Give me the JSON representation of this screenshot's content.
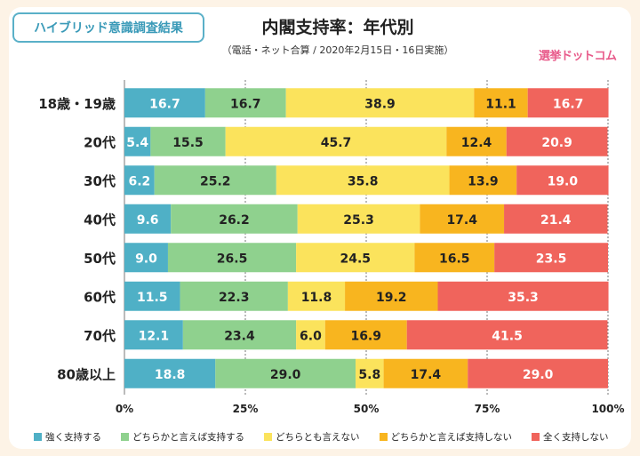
{
  "badge": "ハイブリッド意識調査結果",
  "title": "内閣支持率：年代別",
  "subtitle": "（電話・ネット合算 / 2020年2月15日・16日実施）",
  "logo": "選挙ドットコム",
  "chart_data": {
    "type": "bar",
    "orientation": "horizontal",
    "stacked": true,
    "title": "内閣支持率：年代別",
    "categories": [
      "18歳・19歳",
      "20代",
      "30代",
      "40代",
      "50代",
      "60代",
      "70代",
      "80歳以上"
    ],
    "series": [
      {
        "name": "強く支持する",
        "color": "#4fb0c6",
        "values": [
          16.7,
          5.4,
          6.2,
          9.6,
          9.0,
          11.5,
          12.1,
          18.8
        ]
      },
      {
        "name": "どちらかと言えば支持する",
        "color": "#8fd18e",
        "values": [
          16.7,
          15.5,
          25.2,
          26.2,
          26.5,
          22.3,
          23.4,
          29.0
        ]
      },
      {
        "name": "どちらとも言えない",
        "color": "#fbe35c",
        "values": [
          38.9,
          45.7,
          35.8,
          25.3,
          24.5,
          11.8,
          6.0,
          5.8
        ]
      },
      {
        "name": "どちらかと言えば支持しない",
        "color": "#f8b51f",
        "values": [
          11.1,
          12.4,
          13.9,
          17.4,
          16.5,
          19.2,
          16.9,
          17.4
        ]
      },
      {
        "name": "全く支持しない",
        "color": "#f0645c",
        "values": [
          16.7,
          20.9,
          19.0,
          21.4,
          23.5,
          35.3,
          41.5,
          29.0
        ]
      }
    ],
    "xlim": [
      0,
      100
    ],
    "xticks": [
      "0%",
      "25%",
      "50%",
      "75%",
      "100%"
    ],
    "grid": true,
    "legend": "bottom"
  }
}
